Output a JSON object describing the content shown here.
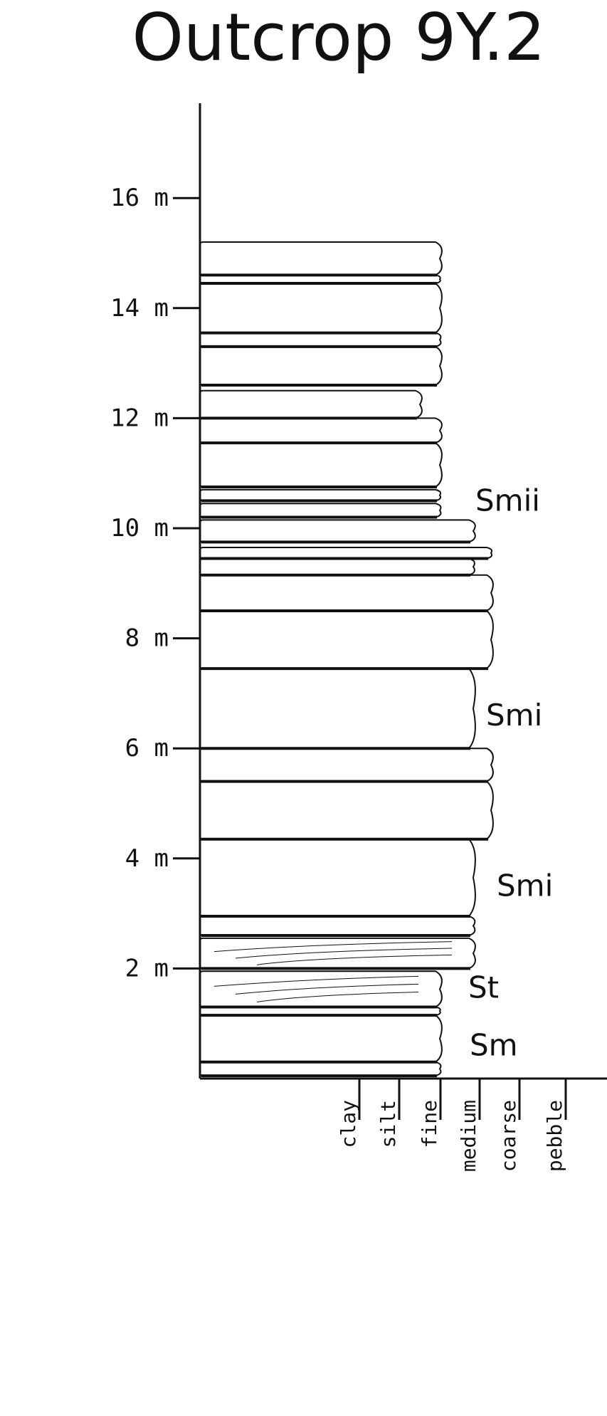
{
  "title": "Outcrop 9Y.2",
  "depth_axis": {
    "ticks": [
      "16 m",
      "14 m",
      "12 m",
      "10 m",
      "8 m",
      "6 m",
      "4 m",
      "2 m"
    ]
  },
  "grain_axis": {
    "labels": [
      "clay",
      "silt",
      "fine",
      "medium",
      "coarse",
      "pebble"
    ]
  },
  "facies": [
    "Smii",
    "Smi",
    "Smi",
    "St",
    "Sm"
  ],
  "chart_data": {
    "type": "stratigraphic-column",
    "title": "Outcrop 9Y.2",
    "y_unit": "m",
    "ylim": [
      0,
      17.8
    ],
    "x_categories": [
      "clay",
      "silt",
      "fine",
      "medium",
      "coarse",
      "pebble"
    ],
    "beds": [
      {
        "base": 0.05,
        "top": 0.3,
        "grain": "fine-medium"
      },
      {
        "base": 0.3,
        "top": 1.15,
        "grain": "fine-medium"
      },
      {
        "base": 1.15,
        "top": 1.3,
        "grain": "fine-medium"
      },
      {
        "base": 1.3,
        "top": 1.95,
        "grain": "fine-medium",
        "structure": "cross-laminated"
      },
      {
        "base": 2.0,
        "top": 2.55,
        "grain": "medium",
        "structure": "laminated"
      },
      {
        "base": 2.6,
        "top": 2.95,
        "grain": "medium"
      },
      {
        "base": 2.95,
        "top": 4.35,
        "grain": "medium"
      },
      {
        "base": 4.35,
        "top": 5.4,
        "grain": "medium-coarse"
      },
      {
        "base": 5.4,
        "top": 6.0,
        "grain": "medium-coarse"
      },
      {
        "base": 6.0,
        "top": 7.45,
        "grain": "medium"
      },
      {
        "base": 7.45,
        "top": 8.5,
        "grain": "medium-coarse"
      },
      {
        "base": 8.5,
        "top": 9.15,
        "grain": "medium-coarse"
      },
      {
        "base": 9.15,
        "top": 9.45,
        "grain": "medium"
      },
      {
        "base": 9.45,
        "top": 9.65,
        "grain": "medium-coarse"
      },
      {
        "base": 9.75,
        "top": 10.15,
        "grain": "medium"
      },
      {
        "base": 10.2,
        "top": 10.45,
        "grain": "fine-medium"
      },
      {
        "base": 10.5,
        "top": 10.7,
        "grain": "fine-medium"
      },
      {
        "base": 10.75,
        "top": 11.55,
        "grain": "fine-medium"
      },
      {
        "base": 11.55,
        "top": 12.0,
        "grain": "fine-medium"
      },
      {
        "base": 12.0,
        "top": 12.5,
        "grain": "fine"
      },
      {
        "base": 12.6,
        "top": 13.3,
        "grain": "fine-medium"
      },
      {
        "base": 13.3,
        "top": 13.55,
        "grain": "fine-medium"
      },
      {
        "base": 13.55,
        "top": 14.45,
        "grain": "fine-medium"
      },
      {
        "base": 14.45,
        "top": 14.6,
        "grain": "fine-medium"
      },
      {
        "base": 14.6,
        "top": 15.2,
        "grain": "fine-medium"
      }
    ],
    "facies_intervals": [
      {
        "label": "Sm",
        "depth_mid": 0.6
      },
      {
        "label": "St",
        "depth_mid": 1.65
      },
      {
        "label": "Smi",
        "depth_mid": 3.5
      },
      {
        "label": "Smi",
        "depth_mid": 6.6
      },
      {
        "label": "Smii",
        "depth_mid": 10.5
      }
    ]
  }
}
